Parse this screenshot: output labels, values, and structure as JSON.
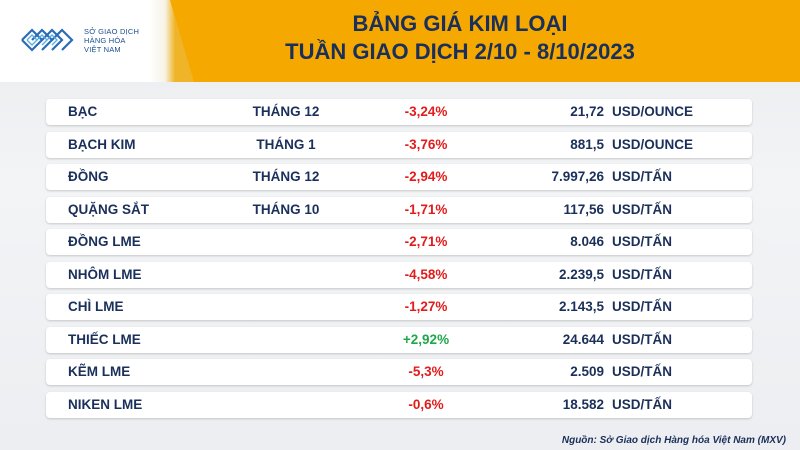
{
  "logo": {
    "line1": "SỞ GIAO DỊCH",
    "line2": "HÀNG HÓA",
    "line3": "VIỆT NAM"
  },
  "title": {
    "line1": "BẢNG GIÁ KIM LOẠI",
    "line2": "TUẦN GIAO DỊCH 2/10 - 8/10/2023"
  },
  "rows": [
    {
      "name": "BẠC",
      "month": "THÁNG 12",
      "change": "-3,24%",
      "price": "21,72",
      "unit": "USD/OUNCE"
    },
    {
      "name": "BẠCH KIM",
      "month": "THÁNG 1",
      "change": "-3,76%",
      "price": "881,5",
      "unit": "USD/OUNCE"
    },
    {
      "name": "ĐỒNG",
      "month": "THÁNG 12",
      "change": "-2,94%",
      "price": "7.997,26",
      "unit": "USD/TẤN"
    },
    {
      "name": "QUẶNG SẮT",
      "month": "THÁNG 10",
      "change": "-1,71%",
      "price": "117,56",
      "unit": "USD/TẤN"
    },
    {
      "name": "ĐỒNG LME",
      "month": "",
      "change": "-2,71%",
      "price": "8.046",
      "unit": "USD/TẤN"
    },
    {
      "name": "NHÔM LME",
      "month": "",
      "change": "-4,58%",
      "price": "2.239,5",
      "unit": "USD/TẤN"
    },
    {
      "name": "CHÌ LME",
      "month": "",
      "change": "-1,27%",
      "price": "2.143,5",
      "unit": "USD/TẤN"
    },
    {
      "name": "THIẾC LME",
      "month": "",
      "change": "+2,92%",
      "price": "24.644",
      "unit": "USD/TẤN"
    },
    {
      "name": "KẼM LME",
      "month": "",
      "change": "-5,3%",
      "price": "2.509",
      "unit": "USD/TẤN"
    },
    {
      "name": "NIKEN LME",
      "month": "",
      "change": "-0,6%",
      "price": "18.582",
      "unit": "USD/TẤN"
    }
  ],
  "colors": {
    "negative": "#e21b1b",
    "positive": "#1ea84a",
    "header_accent": "#f5a800",
    "text": "#1a2f5a"
  },
  "source": "Nguồn: Sở Giao dịch Hàng hóa Việt Nam (MXV)"
}
